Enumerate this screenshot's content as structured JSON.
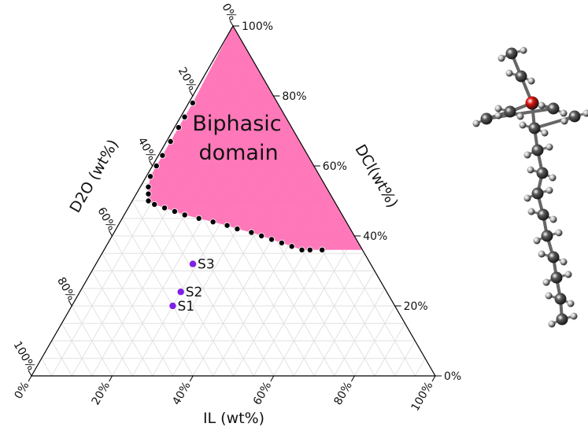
{
  "chart_data": {
    "type": "scatter",
    "subtype": "ternary",
    "grid": true,
    "axes": {
      "bottom": {
        "label": "IL (wt%)",
        "ticks": [
          "0%",
          "20%",
          "40%",
          "60%",
          "80%",
          "100%"
        ]
      },
      "left": {
        "label": "D2O (wt%)",
        "ticks": [
          "0%",
          "20%",
          "40%",
          "60%",
          "80%",
          "100%"
        ]
      },
      "right": {
        "label": "DCl(wt%)",
        "ticks": [
          "0%",
          "20%",
          "40%",
          "60%",
          "80%",
          "100%"
        ]
      }
    },
    "region": {
      "label_lines": [
        "Biphasic",
        "domain"
      ],
      "color": "#ff6eb4"
    },
    "binodal_points": [
      {
        "il": 1,
        "dcl": 78
      },
      {
        "il": 1,
        "dcl": 74
      },
      {
        "il": 1,
        "dcl": 71
      },
      {
        "il": 1,
        "dcl": 67
      },
      {
        "il": 1,
        "dcl": 63
      },
      {
        "il": 1,
        "dcl": 60
      },
      {
        "il": 1,
        "dcl": 57
      },
      {
        "il": 2,
        "dcl": 54
      },
      {
        "il": 3,
        "dcl": 52
      },
      {
        "il": 4,
        "dcl": 50
      },
      {
        "il": 6,
        "dcl": 49
      },
      {
        "il": 9,
        "dcl": 48
      },
      {
        "il": 12,
        "dcl": 47
      },
      {
        "il": 15,
        "dcl": 46
      },
      {
        "il": 19,
        "dcl": 45
      },
      {
        "il": 23,
        "dcl": 44
      },
      {
        "il": 27,
        "dcl": 43
      },
      {
        "il": 30,
        "dcl": 42
      },
      {
        "il": 34,
        "dcl": 41
      },
      {
        "il": 37,
        "dcl": 40
      },
      {
        "il": 40,
        "dcl": 39
      },
      {
        "il": 43,
        "dcl": 38
      },
      {
        "il": 46,
        "dcl": 37
      },
      {
        "il": 49,
        "dcl": 36
      },
      {
        "il": 51,
        "dcl": 36
      },
      {
        "il": 54,
        "dcl": 36
      }
    ],
    "samples": [
      {
        "name": "S1",
        "il": 25,
        "dcl": 20,
        "color": "#7f1fe8"
      },
      {
        "name": "S2",
        "il": 25,
        "dcl": 24,
        "color": "#7f1fe8"
      },
      {
        "name": "S3",
        "il": 24,
        "dcl": 32,
        "color": "#7f1fe8"
      }
    ]
  },
  "image": {
    "molecule_icon": "ball-and-stick-molecule",
    "atom_colors": {
      "oxygen": "#e0110e",
      "carbon": "#5a5a5a",
      "hydrogen": "#c9c9c9"
    }
  }
}
